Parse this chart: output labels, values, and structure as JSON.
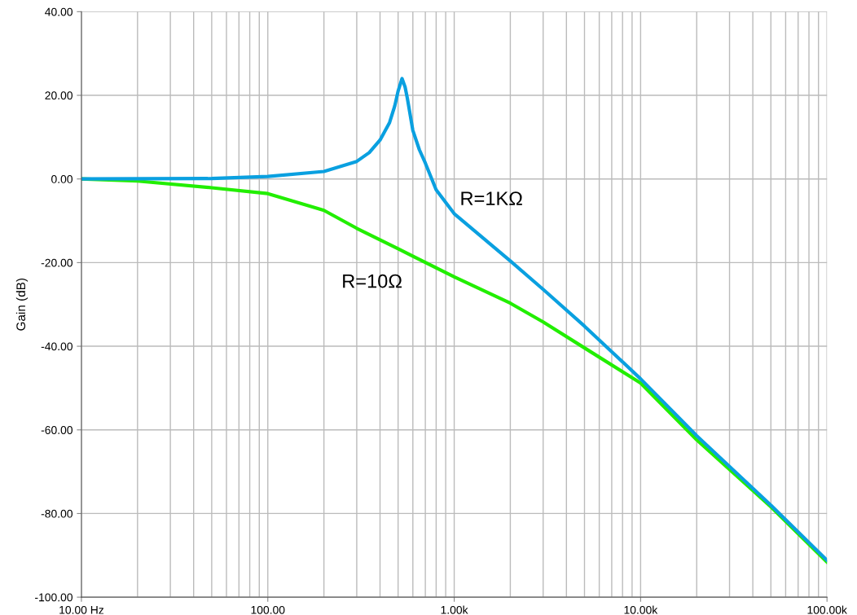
{
  "chart_data": {
    "type": "line",
    "ylabel": "Gain (dB)",
    "log": "x",
    "grid": true,
    "marker": "none",
    "line_style": "solid",
    "xlim": [
      10,
      100000
    ],
    "xticks": [
      {
        "value": 10,
        "label": "10.00 Hz"
      },
      {
        "value": 100,
        "label": "100.00"
      },
      {
        "value": 1000,
        "label": "1.00k"
      },
      {
        "value": 10000,
        "label": "10.00k"
      },
      {
        "value": 100000,
        "label": "100.00k"
      }
    ],
    "ylim": [
      -100,
      40
    ],
    "yticks": [
      {
        "value": -100,
        "label": "-100.00"
      },
      {
        "value": -80,
        "label": "-80.00"
      },
      {
        "value": -60,
        "label": "-60.00"
      },
      {
        "value": -40,
        "label": "-40.00"
      },
      {
        "value": -20,
        "label": "-20.00"
      },
      {
        "value": 0,
        "label": "0.00"
      },
      {
        "value": 20,
        "label": "20.00"
      },
      {
        "value": 40,
        "label": "40.00"
      }
    ],
    "series": [
      {
        "name": "R=10Ω",
        "color": "#22ee00",
        "x": [
          10,
          20,
          50,
          100,
          200,
          300,
          500,
          1000,
          2000,
          3000,
          5000,
          10000,
          20000,
          50000,
          100000
        ],
        "values": [
          0,
          -0.5,
          -2.1,
          -3.5,
          -7.5,
          -11.8,
          -16.7,
          -23.4,
          -29.7,
          -34.2,
          -40.4,
          -48.8,
          -62.4,
          -78.4,
          -91.6
        ]
      },
      {
        "name": "R=1KΩ",
        "color": "#0aa0e0",
        "x": [
          10,
          50,
          100,
          200,
          300,
          350,
          400,
          450,
          480,
          500,
          525,
          545,
          560,
          600,
          650,
          700,
          800,
          1000,
          2000,
          3000,
          5000,
          10000,
          20000,
          50000,
          100000
        ],
        "values": [
          0,
          0.1,
          0.6,
          1.8,
          4.2,
          6.3,
          9.3,
          13.5,
          17.5,
          21,
          24,
          22,
          19.4,
          11.6,
          7,
          3.8,
          -2.6,
          -8.3,
          -19.6,
          -26.4,
          -35.2,
          -47.8,
          -61.4,
          -78,
          -91.2
        ]
      }
    ]
  }
}
